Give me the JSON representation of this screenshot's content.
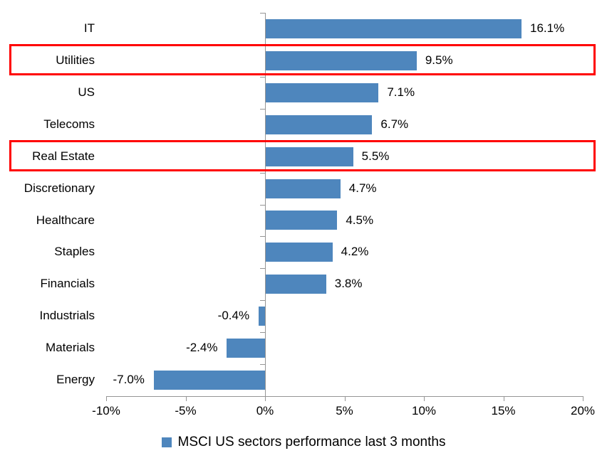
{
  "chart_data": {
    "type": "bar",
    "orientation": "horizontal",
    "title": "",
    "legend": "MSCI US sectors performance last 3 months",
    "legend_position": "bottom-center",
    "categories": [
      "IT",
      "Utilities",
      "US",
      "Telecoms",
      "Real Estate",
      "Discretionary",
      "Healthcare",
      "Staples",
      "Financials",
      "Industrials",
      "Materials",
      "Energy"
    ],
    "values": [
      16.1,
      9.5,
      7.1,
      6.7,
      5.5,
      4.7,
      4.5,
      4.2,
      3.8,
      -0.4,
      -2.4,
      -7.0
    ],
    "value_labels": [
      "16.1%",
      "9.5%",
      "7.1%",
      "6.7%",
      "5.5%",
      "4.7%",
      "4.5%",
      "4.2%",
      "3.8%",
      "-0.4%",
      "-2.4%",
      "-7.0%"
    ],
    "x_ticks": [
      "-10%",
      "-5%",
      "0%",
      "5%",
      "10%",
      "15%",
      "20%"
    ],
    "x_tick_values": [
      -10,
      -5,
      0,
      5,
      10,
      15,
      20
    ],
    "xlim": [
      -10,
      20
    ],
    "grid": "off",
    "bar_color": "#4E86BD",
    "highlight_color": "#FF0000",
    "highlighted_categories": [
      "Utilities",
      "Real Estate"
    ]
  }
}
